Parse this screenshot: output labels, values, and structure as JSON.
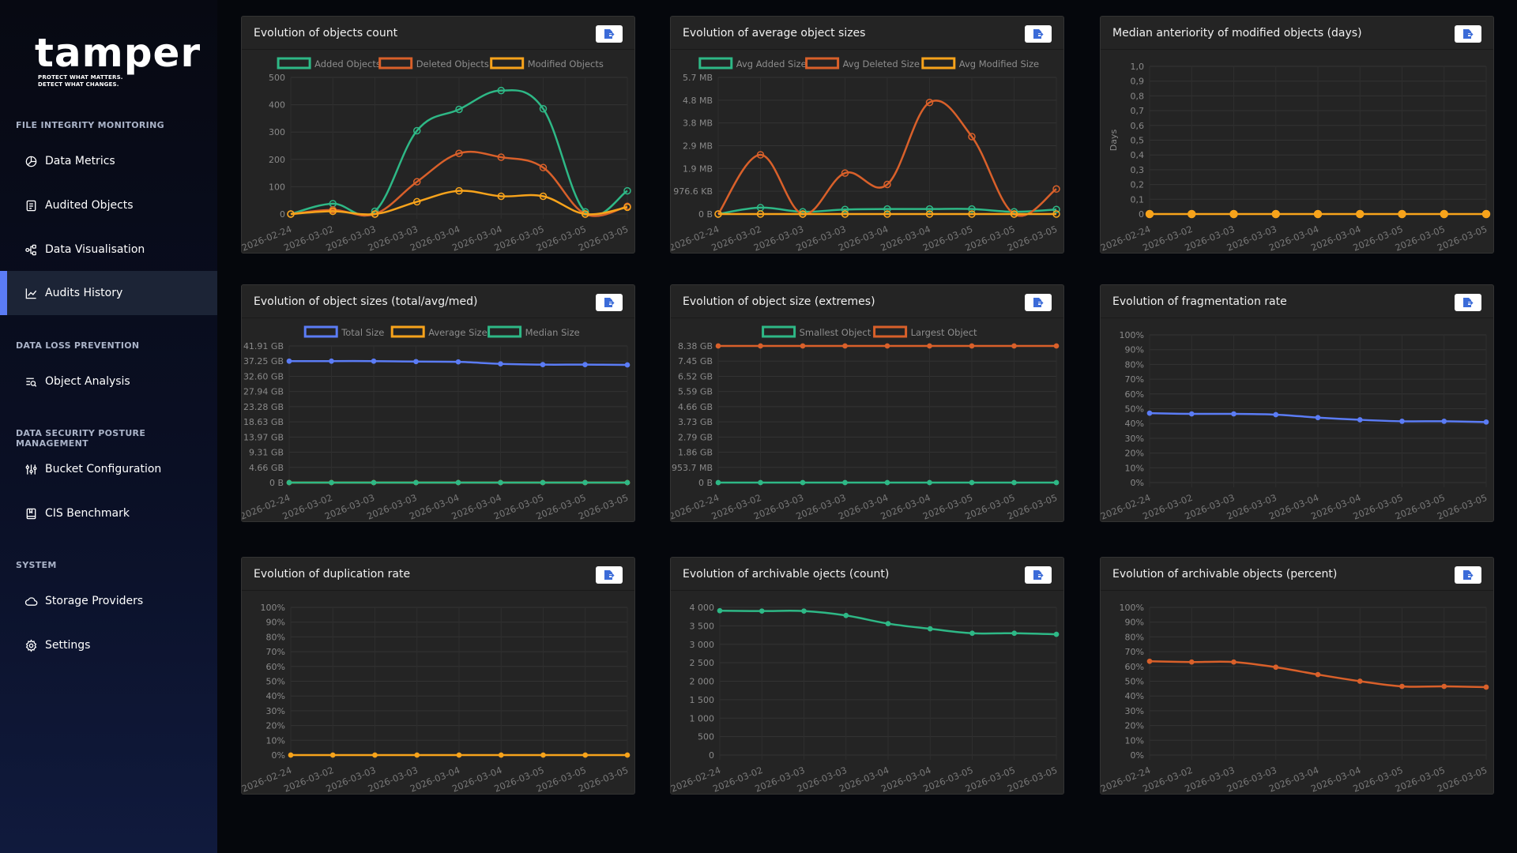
{
  "sidebar": {
    "logo": {
      "word": "tamper",
      "tagline_1": "PROTECT WHAT MATTERS.",
      "tagline_2": "DETECT WHAT CHANGES."
    },
    "sections": {
      "fim": "FILE INTEGRITY MONITORING",
      "dlp": "DATA LOSS PREVENTION",
      "dspm": "DATA SECURITY POSTURE MANAGEMENT",
      "system": "SYSTEM"
    },
    "items": {
      "data_metrics": "Data Metrics",
      "audited_objects": "Audited Objects",
      "data_visualisation": "Data Visualisation",
      "audits_history": "Audits History",
      "object_analysis": "Object Analysis",
      "bucket_configuration": "Bucket Configuration",
      "cis_benchmark": "CIS Benchmark",
      "storage_providers": "Storage Providers",
      "settings": "Settings"
    },
    "active_item": "audits_history",
    "accent_color": "#5b7cf5"
  },
  "colors": {
    "green": "#2eb886",
    "orange_red": "#d9602a",
    "orange": "#f7a31b",
    "blue": "#5b7cf5"
  },
  "dates": [
    "2026-02-24",
    "2026-03-02",
    "2026-03-03",
    "2026-03-03",
    "2026-03-04",
    "2026-03-04",
    "2026-03-05",
    "2026-03-05",
    "2026-03-05"
  ],
  "chart_data": [
    {
      "id": "c1",
      "type": "line",
      "title": "Evolution of objects count",
      "yticks": [
        "0",
        "100",
        "200",
        "300",
        "400",
        "500"
      ],
      "ylim": [
        0,
        500
      ],
      "series": [
        {
          "name": "Added Objects",
          "color": "#2eb886",
          "values": [
            0,
            38,
            10,
            305,
            383,
            452,
            385,
            8,
            85
          ]
        },
        {
          "name": "Deleted Objects",
          "color": "#d9602a",
          "values": [
            0,
            15,
            0,
            118,
            222,
            208,
            170,
            0,
            28
          ]
        },
        {
          "name": "Modified Objects",
          "color": "#f7a31b",
          "values": [
            0,
            10,
            0,
            45,
            85,
            65,
            65,
            0,
            25
          ]
        }
      ]
    },
    {
      "id": "c2",
      "type": "line",
      "title": "Evolution of average object sizes",
      "yticks": [
        "0 B",
        "976.6 KB",
        "1.9 MB",
        "2.9 MB",
        "3.8 MB",
        "4.8 MB",
        "5.7 MB"
      ],
      "ylim": [
        0,
        6
      ],
      "series": [
        {
          "name": "Avg Added Size",
          "color": "#2eb886",
          "values": [
            0,
            0.28,
            0.1,
            0.2,
            0.22,
            0.22,
            0.22,
            0.1,
            0.2
          ]
        },
        {
          "name": "Avg Deleted Size",
          "color": "#d9602a",
          "values": [
            0,
            2.6,
            0,
            1.8,
            1.3,
            4.9,
            3.4,
            0,
            1.1
          ]
        },
        {
          "name": "Avg Modified Size",
          "color": "#f7a31b",
          "values": [
            0,
            0,
            0,
            0,
            0,
            0,
            0,
            0,
            0
          ]
        }
      ]
    },
    {
      "id": "c3",
      "type": "line",
      "title": "Median anteriority of modified objects (days)",
      "ylabel": "Days",
      "yticks": [
        "0",
        "0,1",
        "0,2",
        "0,3",
        "0,4",
        "0,5",
        "0,6",
        "0,7",
        "0,8",
        "0,9",
        "1,0"
      ],
      "ylim": [
        0,
        1
      ],
      "legend": false,
      "series": [
        {
          "name": "",
          "color": "#f7a31b",
          "values": [
            0,
            0,
            0,
            0,
            0,
            0,
            0,
            0,
            0
          ],
          "big_points": true
        }
      ]
    },
    {
      "id": "c4",
      "type": "line",
      "title": "Evolution of object sizes (total/avg/med)",
      "yticks": [
        "0 B",
        "4.66 GB",
        "9.31 GB",
        "13.97 GB",
        "18.63 GB",
        "23.28 GB",
        "27.94 GB",
        "32.60 GB",
        "37.25 GB",
        "41.91 GB"
      ],
      "ylim": [
        0,
        9
      ],
      "series": [
        {
          "name": "Total Size",
          "color": "#5b7cf5",
          "values": [
            8,
            8,
            8,
            7.97,
            7.95,
            7.82,
            7.77,
            7.77,
            7.75
          ]
        },
        {
          "name": "Average Size",
          "color": "#f7a31b",
          "values": [
            0,
            0,
            0,
            0,
            0,
            0,
            0,
            0,
            0
          ]
        },
        {
          "name": "Median Size",
          "color": "#2eb886",
          "values": [
            0,
            0,
            0,
            0,
            0,
            0,
            0,
            0,
            0
          ]
        }
      ]
    },
    {
      "id": "c5",
      "type": "line",
      "title": "Evolution of object size (extremes)",
      "yticks": [
        "0 B",
        "953.7 MB",
        "1.86 GB",
        "2.79 GB",
        "3.73 GB",
        "4.66 GB",
        "5.59 GB",
        "6.52 GB",
        "7.45 GB",
        "8.38 GB"
      ],
      "ylim": [
        0,
        9
      ],
      "series": [
        {
          "name": "Smallest Object",
          "color": "#2eb886",
          "values": [
            0,
            0,
            0,
            0,
            0,
            0,
            0,
            0,
            0
          ]
        },
        {
          "name": "Largest Object",
          "color": "#d9602a",
          "values": [
            9,
            9,
            9,
            9,
            9,
            9,
            9,
            9,
            9
          ]
        }
      ]
    },
    {
      "id": "c6",
      "type": "line",
      "title": "Evolution of fragmentation rate",
      "yticks": [
        "0%",
        "10%",
        "20%",
        "30%",
        "40%",
        "50%",
        "60%",
        "70%",
        "80%",
        "90%",
        "100%"
      ],
      "ylim": [
        0,
        100
      ],
      "legend": false,
      "series": [
        {
          "name": "",
          "color": "#5b7cf5",
          "values": [
            47,
            46.5,
            46.5,
            46,
            44,
            42.5,
            41.5,
            41.5,
            41
          ]
        }
      ]
    },
    {
      "id": "c7",
      "type": "line",
      "title": "Evolution of duplication rate",
      "yticks": [
        "0%",
        "10%",
        "20%",
        "30%",
        "40%",
        "50%",
        "60%",
        "70%",
        "80%",
        "90%",
        "100%"
      ],
      "ylim": [
        0,
        100
      ],
      "legend": false,
      "series": [
        {
          "name": "",
          "color": "#f7a31b",
          "values": [
            0,
            0,
            0,
            0,
            0,
            0,
            0,
            0,
            0
          ]
        }
      ]
    },
    {
      "id": "c8",
      "type": "line",
      "title": "Evolution of archivable ojects (count)",
      "yticks": [
        "0",
        "500",
        "1 000",
        "1 500",
        "2 000",
        "2 500",
        "3 000",
        "3 500",
        "4 000"
      ],
      "ylim": [
        0,
        4000
      ],
      "legend": false,
      "series": [
        {
          "name": "",
          "color": "#2eb886",
          "values": [
            3910,
            3900,
            3900,
            3780,
            3560,
            3420,
            3300,
            3300,
            3270
          ]
        }
      ]
    },
    {
      "id": "c9",
      "type": "line",
      "title": "Evolution of archivable objects (percent)",
      "yticks": [
        "0%",
        "10%",
        "20%",
        "30%",
        "40%",
        "50%",
        "60%",
        "70%",
        "80%",
        "90%",
        "100%"
      ],
      "ylim": [
        0,
        100
      ],
      "legend": false,
      "series": [
        {
          "name": "",
          "color": "#d9602a",
          "values": [
            63.5,
            63,
            63,
            59.5,
            54.5,
            50,
            46.5,
            46.5,
            46
          ]
        }
      ]
    }
  ]
}
